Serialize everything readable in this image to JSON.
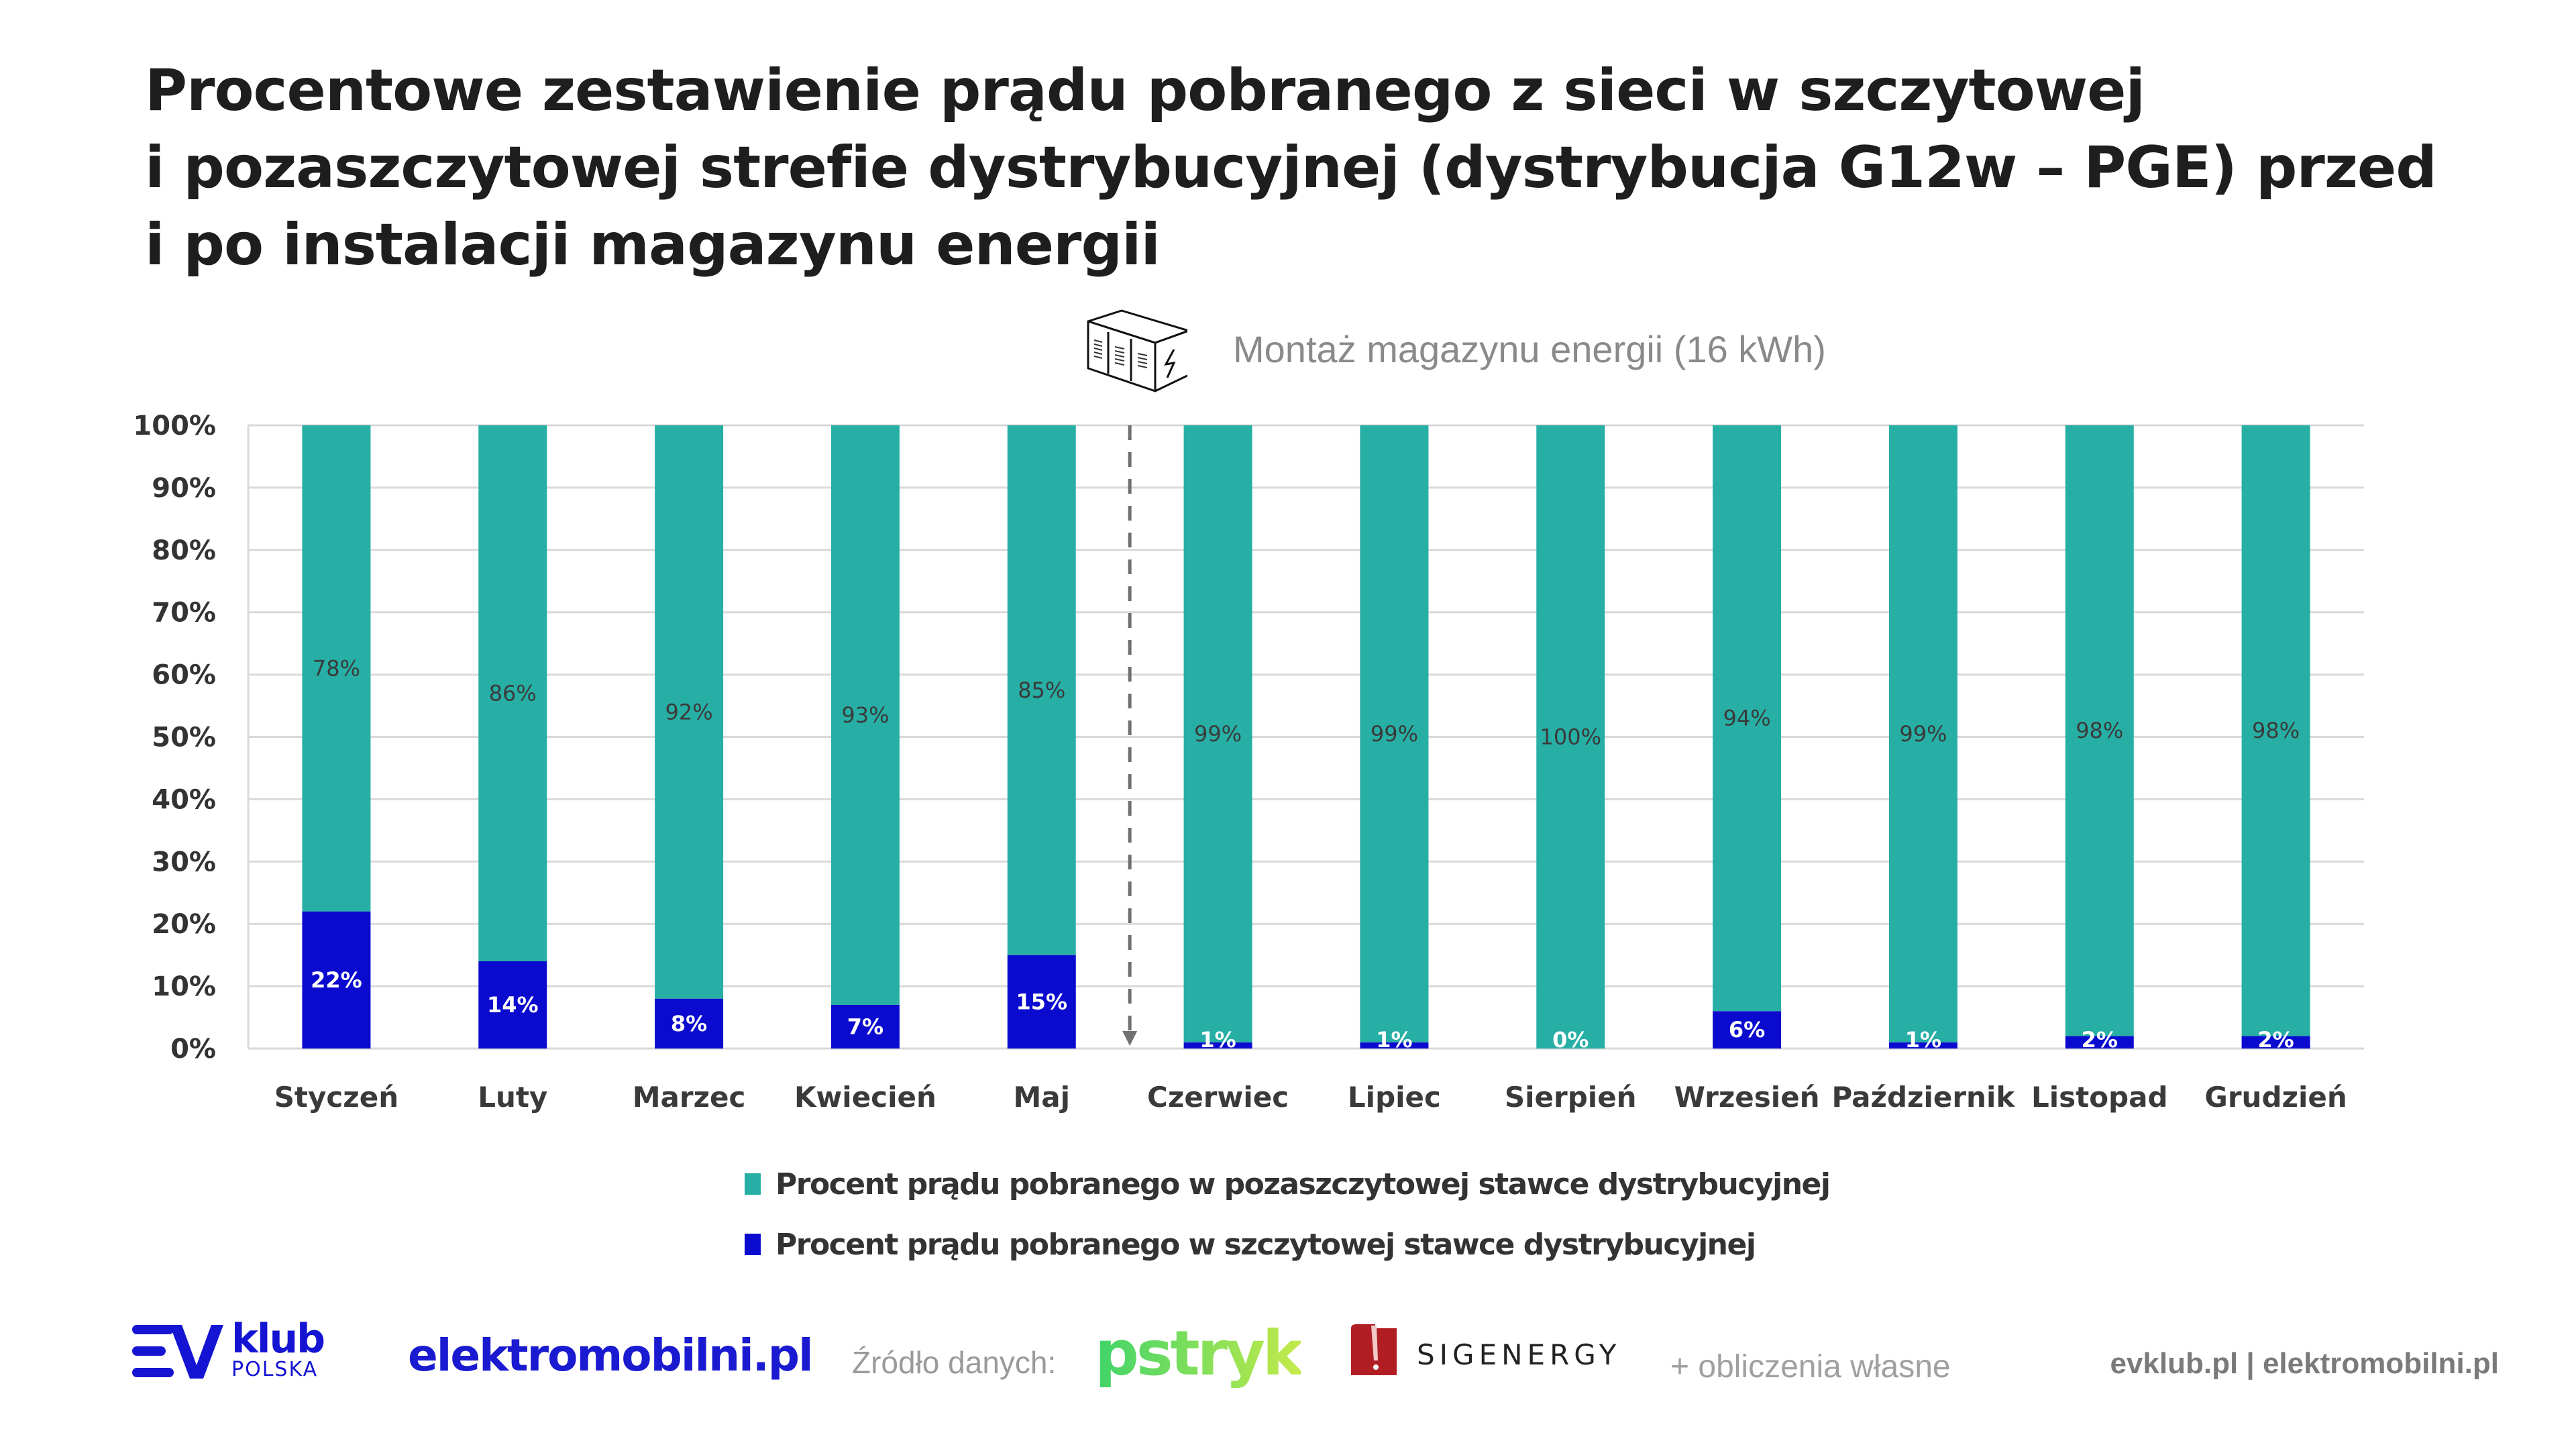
{
  "title": {
    "lines": [
      "Procentowe zestawienie prądu pobranego z sieci w szczytowej",
      "i pozaszczytowej strefie dystrybucyjnej (dystrybucja G12w – PGE) przed",
      "i po instalacji magazynu energii"
    ]
  },
  "annotation": {
    "icon": "battery-storage-icon",
    "text": "Montaż magazynu energii (16 kWh)",
    "marker_after_category": "Maj"
  },
  "colors": {
    "off_peak": "#27afa5",
    "peak": "#0b0bcf",
    "grid": "#d9d9d9",
    "marker": "#707070"
  },
  "chart_data": {
    "type": "bar",
    "stacked": true,
    "title": "Procentowe zestawienie prądu pobranego z sieci w szczytowej i pozaszczytowej strefie dystrybucyjnej (dystrybucja G12w – PGE) przed i po instalacji magazynu energii",
    "xlabel": "",
    "ylabel": "",
    "ylim": [
      0,
      100
    ],
    "yticks": [
      "0%",
      "10%",
      "20%",
      "30%",
      "40%",
      "50%",
      "60%",
      "70%",
      "80%",
      "90%",
      "100%"
    ],
    "grid": true,
    "legend_position": "bottom",
    "categories": [
      "Styczeń",
      "Luty",
      "Marzec",
      "Kwiecień",
      "Maj",
      "Czerwiec",
      "Lipiec",
      "Sierpień",
      "Wrzesień",
      "Październik",
      "Listopad",
      "Grudzień"
    ],
    "series": [
      {
        "name": "Procent prądu pobranego w szczytowej stawce dystrybucyjnej",
        "color": "#0b0bcf",
        "values": [
          22,
          14,
          8,
          7,
          15,
          1,
          1,
          0,
          6,
          1,
          2,
          2
        ],
        "labels": [
          "22%",
          "14%",
          "8%",
          "7%",
          "15%",
          "1%",
          "1%",
          "0%",
          "6%",
          "1%",
          "2%",
          "2%"
        ]
      },
      {
        "name": "Procent prądu pobranego w pozaszczytowej stawce dystrybucyjnej",
        "color": "#27afa5",
        "values": [
          78,
          86,
          92,
          93,
          85,
          99,
          99,
          100,
          94,
          99,
          98,
          98
        ],
        "labels": [
          "78%",
          "86%",
          "92%",
          "93%",
          "85%",
          "99%",
          "99%",
          "100%",
          "94%",
          "99%",
          "98%",
          "98%"
        ]
      }
    ],
    "annotation": {
      "type": "dashed-vertical-arrow",
      "between": [
        "Maj",
        "Czerwiec"
      ],
      "text": "Montaż magazynu energii (16 kWh)"
    }
  },
  "legend": {
    "items": [
      {
        "label": "Procent prądu pobranego w pozaszczytowej stawce dystrybucyjnej",
        "color": "#27afa5"
      },
      {
        "label": "Procent prądu pobranego w szczytowej stawce dystrybucyjnej",
        "color": "#0b0bcf"
      }
    ]
  },
  "footer": {
    "evklub_logo": {
      "word": "klub",
      "sub": "POLSKA",
      "mark": "EV"
    },
    "elektromobilni_logo": "elektromobilni.pl",
    "source_label": "Źródło danych:",
    "pstryk_logo": "pstryk",
    "sigenergy_logo": "SIGENERGY",
    "own_calculations": "+ obliczenia własne",
    "site_links": "evklub.pl | elektromobilni.pl"
  }
}
